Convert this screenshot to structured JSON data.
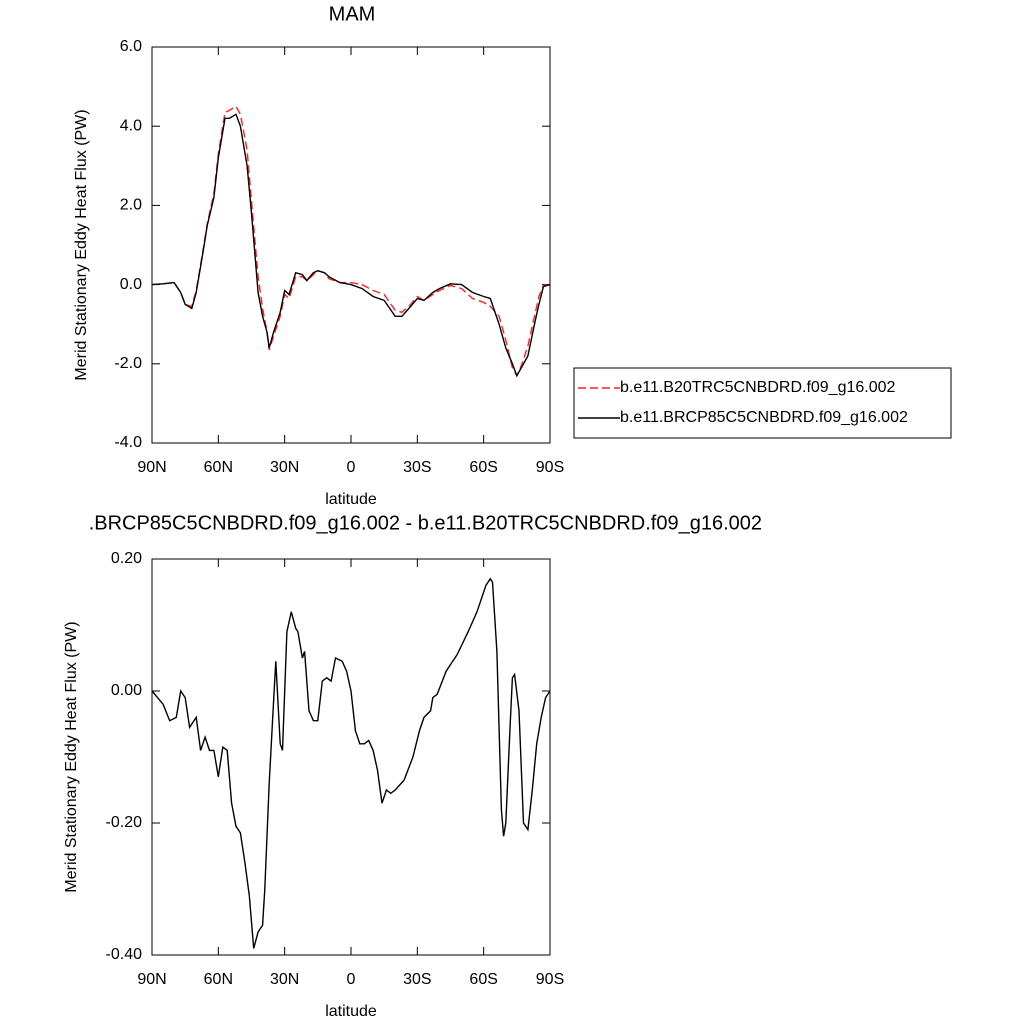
{
  "chart_data": [
    {
      "type": "line",
      "title": "MAM",
      "xlabel": "latitude",
      "ylabel": "Merid Stationary Eddy Heat Flux (PW)",
      "xlim": [
        90,
        -90
      ],
      "xticks": [
        {
          "value": 90,
          "label": "90N"
        },
        {
          "value": 60,
          "label": "60N"
        },
        {
          "value": 30,
          "label": "30N"
        },
        0,
        {
          "value": -30,
          "label": "30S"
        },
        {
          "value": -60,
          "label": "60S"
        },
        {
          "value": -90,
          "label": "90S"
        }
      ],
      "ylim": [
        -4,
        6
      ],
      "yticks": [
        {
          "value": -4,
          "label": "-4.0"
        },
        {
          "value": -2,
          "label": "-2.0"
        },
        {
          "value": 0,
          "label": "0.0"
        },
        {
          "value": 2,
          "label": "2.0"
        },
        {
          "value": 4,
          "label": "4.0"
        },
        {
          "value": 6,
          "label": "6.0"
        }
      ],
      "legend": "right",
      "x": [
        90,
        85,
        80,
        77,
        75,
        72,
        70,
        67,
        65,
        62,
        60,
        57,
        55,
        52,
        50,
        47,
        45,
        42,
        40,
        38,
        37,
        35,
        32,
        30,
        28,
        25,
        22,
        20,
        17,
        15,
        12,
        10,
        5,
        0,
        -5,
        -10,
        -15,
        -20,
        -23,
        -27,
        -30,
        -33,
        -37,
        -40,
        -45,
        -50,
        -55,
        -60,
        -63,
        -67,
        -70,
        -73,
        -75,
        -77,
        -80,
        -83,
        -85,
        -87,
        -90
      ],
      "series": [
        {
          "name": "b.e11.B20TRC5CNBDRD.f09_g16.002",
          "color": "#ff2020",
          "dash": "dashed",
          "values": [
            0,
            0.02,
            0.05,
            -0.2,
            -0.5,
            -0.55,
            -0.15,
            0.85,
            1.55,
            2.3,
            3.3,
            4.35,
            4.4,
            4.5,
            4.3,
            3.4,
            2.1,
            0.2,
            -0.6,
            -1.2,
            -1.65,
            -1.3,
            -0.8,
            -0.25,
            -0.35,
            0.2,
            0.2,
            0.1,
            0.25,
            0.35,
            0.3,
            0.15,
            0.05,
            0.05,
            0.0,
            -0.15,
            -0.25,
            -0.65,
            -0.7,
            -0.5,
            -0.3,
            -0.4,
            -0.25,
            -0.15,
            -0.02,
            -0.1,
            -0.35,
            -0.45,
            -0.55,
            -0.8,
            -1.4,
            -2.1,
            -2.3,
            -2.05,
            -1.55,
            -0.8,
            -0.3,
            -0.02,
            0
          ]
        },
        {
          "name": "b.e11.BRCP85C5CNBDRD.f09_g16.002",
          "color": "#000000",
          "dash": "solid",
          "values": [
            0,
            0.02,
            0.05,
            -0.2,
            -0.5,
            -0.6,
            -0.2,
            0.8,
            1.5,
            2.2,
            3.2,
            4.2,
            4.2,
            4.3,
            4.0,
            3.0,
            1.8,
            -0.2,
            -0.8,
            -1.2,
            -1.6,
            -1.2,
            -0.7,
            -0.15,
            -0.25,
            0.3,
            0.25,
            0.1,
            0.3,
            0.35,
            0.3,
            0.2,
            0.05,
            0.0,
            -0.1,
            -0.3,
            -0.4,
            -0.8,
            -0.8,
            -0.55,
            -0.35,
            -0.4,
            -0.2,
            -0.1,
            0.02,
            0.0,
            -0.2,
            -0.3,
            -0.35,
            -1.0,
            -1.6,
            -2.0,
            -2.3,
            -2.1,
            -1.8,
            -1.0,
            -0.5,
            -0.05,
            0
          ]
        }
      ]
    },
    {
      "type": "line",
      "title": ".BRCP85C5CNBDRD.f09_g16.002 - b.e11.B20TRC5CNBDRD.f09_g16.002",
      "xlabel": "latitude",
      "ylabel": "Merid Stationary Eddy Heat Flux (PW)",
      "xlim": [
        90,
        -90
      ],
      "xticks": [
        {
          "value": 90,
          "label": "90N"
        },
        {
          "value": 60,
          "label": "60N"
        },
        {
          "value": 30,
          "label": "30N"
        },
        0,
        {
          "value": -30,
          "label": "30S"
        },
        {
          "value": -60,
          "label": "60S"
        },
        {
          "value": -90,
          "label": "90S"
        }
      ],
      "ylim": [
        -0.4,
        0.2
      ],
      "yticks": [
        {
          "value": -0.4,
          "label": "-0.40"
        },
        {
          "value": -0.2,
          "label": "-0.20"
        },
        {
          "value": 0,
          "label": "0.00"
        },
        {
          "value": 0.2,
          "label": "0.20"
        }
      ],
      "x": [
        90,
        85,
        82,
        79,
        77,
        75,
        73,
        70,
        68,
        66,
        64,
        62,
        60,
        58,
        56,
        54,
        52,
        50,
        48,
        46,
        44,
        42,
        40,
        39,
        37,
        35,
        34,
        32,
        31,
        29,
        27,
        25,
        24,
        22,
        21,
        19,
        17,
        15,
        13,
        11,
        9,
        7,
        4,
        2,
        0,
        -2,
        -4,
        -6,
        -8,
        -10,
        -12,
        -14,
        -16,
        -18,
        -20,
        -24,
        -28,
        -31,
        -33,
        -36,
        -37,
        -39,
        -43,
        -48,
        -53,
        -57,
        -61,
        -63,
        -64,
        -66,
        -68,
        -69,
        -70,
        -72,
        -73,
        -74,
        -76,
        -78,
        -80,
        -82,
        -84,
        -86,
        -88,
        -90
      ],
      "series": [
        {
          "color": "#000000",
          "dash": "solid",
          "values": [
            0,
            -0.02,
            -0.045,
            -0.04,
            0.0,
            -0.01,
            -0.055,
            -0.04,
            -0.09,
            -0.07,
            -0.09,
            -0.09,
            -0.13,
            -0.085,
            -0.09,
            -0.17,
            -0.205,
            -0.215,
            -0.26,
            -0.31,
            -0.39,
            -0.365,
            -0.355,
            -0.3,
            -0.14,
            -0.015,
            0.045,
            -0.08,
            -0.09,
            0.09,
            0.12,
            0.095,
            0.09,
            0.05,
            0.06,
            -0.03,
            -0.045,
            -0.045,
            0.015,
            0.02,
            0.015,
            0.05,
            0.045,
            0.03,
            0.0,
            -0.06,
            -0.08,
            -0.08,
            -0.075,
            -0.09,
            -0.12,
            -0.17,
            -0.15,
            -0.155,
            -0.15,
            -0.135,
            -0.1,
            -0.06,
            -0.04,
            -0.03,
            -0.01,
            -0.005,
            0.03,
            0.055,
            0.09,
            0.12,
            0.16,
            0.17,
            0.165,
            0.06,
            -0.18,
            -0.22,
            -0.2,
            -0.05,
            0.02,
            0.025,
            -0.03,
            -0.2,
            -0.21,
            -0.15,
            -0.08,
            -0.04,
            -0.01,
            0
          ]
        }
      ]
    }
  ]
}
